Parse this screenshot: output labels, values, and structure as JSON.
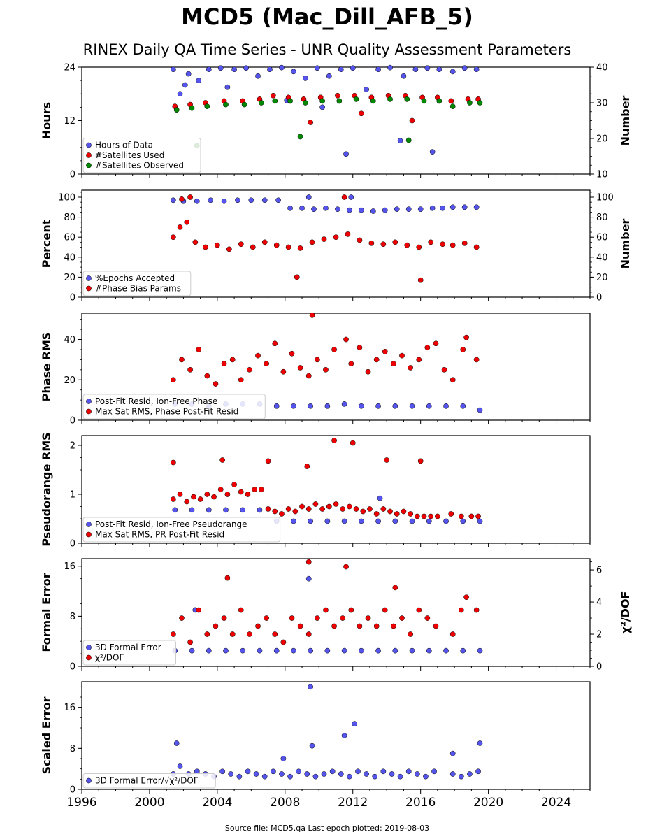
{
  "title": "MCD5 (Mac_Dill_AFB_5)",
  "subtitle": "RINEX Daily QA Time Series - UNR Quality Assessment Parameters",
  "footer": "Source file: MCD5.qa Last epoch plotted: 2019-08-03",
  "colors": {
    "blue": "#5555ee",
    "red": "#ee0000",
    "green": "#008800"
  },
  "chart_data": [
    {
      "type": "scatter",
      "ylabel": "Hours",
      "y2label": "Number",
      "ylim": [
        0,
        24
      ],
      "yticks": [
        0,
        12,
        24
      ],
      "y2lim": [
        10,
        40
      ],
      "y2ticks": [
        10,
        20,
        30,
        40
      ],
      "xlim": [
        1996,
        2026
      ],
      "legend": "bottom-left",
      "series": [
        {
          "name": "Hours of Data",
          "axis": "left",
          "color": "#5555ee",
          "x": [
            2001.4,
            2001.8,
            2002.3,
            2002.9,
            2003.5,
            2004.2,
            2005.0,
            2005.7,
            2006.4,
            2007.1,
            2007.8,
            2008.5,
            2009.2,
            2009.9,
            2010.6,
            2011.3,
            2012.0,
            2012.8,
            2013.5,
            2014.2,
            2015.0,
            2015.7,
            2016.4,
            2017.1,
            2017.9,
            2018.6,
            2019.3,
            2002.1,
            2004.6,
            2008.1,
            2010.2,
            2011.6,
            2014.8,
            2016.7
          ],
          "y": [
            23.5,
            18.0,
            22.5,
            21.0,
            23.5,
            23.8,
            23.5,
            23.8,
            22.0,
            23.5,
            23.9,
            23.0,
            21.5,
            23.8,
            22.0,
            23.5,
            23.8,
            19.0,
            23.5,
            23.9,
            22.0,
            23.5,
            23.8,
            23.5,
            23.0,
            23.8,
            23.5,
            20.0,
            19.5,
            16.5,
            15.0,
            4.5,
            7.5,
            5.0
          ]
        },
        {
          "name": "#Satellites Used",
          "axis": "right",
          "color": "#ee0000",
          "x": [
            2001.5,
            2002.4,
            2003.3,
            2004.4,
            2005.5,
            2006.5,
            2007.3,
            2008.2,
            2009.1,
            2010.1,
            2011.1,
            2012.1,
            2013.1,
            2014.1,
            2015.1,
            2016.1,
            2017.0,
            2017.8,
            2018.8,
            2019.4,
            2009.5,
            2012.5,
            2015.5
          ],
          "y": [
            29.0,
            29.5,
            30.0,
            30.5,
            30.5,
            31.0,
            32.0,
            31.5,
            31.0,
            31.5,
            32.0,
            32.0,
            31.5,
            32.0,
            32.0,
            31.5,
            31.5,
            30.5,
            31.0,
            31.0,
            24.5,
            27.0,
            25.0
          ]
        },
        {
          "name": "#Satellites Observed",
          "axis": "right",
          "color": "#008800",
          "x": [
            2001.6,
            2002.5,
            2003.4,
            2004.5,
            2005.6,
            2006.6,
            2007.4,
            2008.3,
            2009.2,
            2010.2,
            2011.2,
            2012.2,
            2013.2,
            2014.2,
            2015.2,
            2016.2,
            2017.1,
            2017.9,
            2018.9,
            2019.5,
            2002.8,
            2008.9,
            2015.3
          ],
          "y": [
            28.0,
            28.5,
            29.0,
            29.5,
            29.5,
            30.0,
            30.5,
            30.5,
            30.0,
            30.5,
            30.5,
            31.0,
            30.5,
            31.0,
            31.0,
            30.5,
            30.5,
            29.0,
            30.0,
            30.0,
            18.0,
            20.5,
            19.5
          ]
        }
      ]
    },
    {
      "type": "scatter",
      "ylabel": "Percent",
      "y2label": "Number",
      "ylim": [
        0,
        107
      ],
      "yticks": [
        0,
        20,
        40,
        60,
        80,
        100
      ],
      "y2lim": [
        0,
        107
      ],
      "y2ticks": [
        0,
        20,
        40,
        60,
        80,
        100
      ],
      "xlim": [
        1996,
        2026
      ],
      "legend": "bottom-left",
      "series": [
        {
          "name": "%Epochs Accepted",
          "axis": "left",
          "color": "#5555ee",
          "x": [
            2001.4,
            2002.0,
            2002.8,
            2003.6,
            2004.4,
            2005.2,
            2006.0,
            2006.8,
            2007.6,
            2008.3,
            2009.0,
            2009.7,
            2010.4,
            2011.1,
            2011.8,
            2012.5,
            2013.2,
            2013.9,
            2014.6,
            2015.3,
            2016.0,
            2016.7,
            2017.3,
            2017.9,
            2018.6,
            2019.3,
            2009.4,
            2011.9
          ],
          "y": [
            97,
            96,
            96,
            97,
            96,
            97,
            97,
            97,
            97,
            89,
            89,
            88,
            89,
            88,
            87,
            87,
            86,
            87,
            88,
            88,
            88,
            89,
            89,
            90,
            90,
            90,
            100,
            100
          ]
        },
        {
          "name": "#Phase Bias Params",
          "axis": "right",
          "color": "#ee0000",
          "x": [
            2001.4,
            2001.8,
            2002.2,
            2002.7,
            2003.3,
            2004.0,
            2004.7,
            2005.4,
            2006.1,
            2006.8,
            2007.5,
            2008.2,
            2008.9,
            2009.6,
            2010.3,
            2011.0,
            2011.7,
            2012.4,
            2013.1,
            2013.8,
            2014.5,
            2015.2,
            2015.9,
            2016.6,
            2017.3,
            2017.9,
            2018.6,
            2019.3,
            2001.9,
            2002.4,
            2011.5,
            2008.7,
            2016.0
          ],
          "y": [
            60,
            70,
            75,
            55,
            50,
            52,
            48,
            53,
            50,
            55,
            52,
            50,
            49,
            55,
            58,
            60,
            63,
            57,
            54,
            53,
            55,
            52,
            50,
            55,
            53,
            52,
            54,
            50,
            98,
            100,
            100,
            20,
            17
          ]
        }
      ]
    },
    {
      "type": "scatter",
      "ylabel": "Phase RMS",
      "ylim": [
        0,
        53
      ],
      "yticks": [
        0,
        20,
        40
      ],
      "xlim": [
        1996,
        2026
      ],
      "legend": "bottom-left",
      "series": [
        {
          "name": "Post-Fit Resid, Ion-Free Phase",
          "color": "#5555ee",
          "x": [
            2001.5,
            2002.5,
            2003.5,
            2004.5,
            2005.5,
            2006.5,
            2007.5,
            2008.5,
            2009.5,
            2010.5,
            2011.5,
            2012.5,
            2013.5,
            2014.5,
            2015.5,
            2016.5,
            2017.5,
            2018.5,
            2019.5
          ],
          "y": [
            8,
            8,
            7,
            8,
            8,
            8,
            7,
            7,
            7,
            7,
            8,
            7,
            7,
            7,
            7,
            7,
            7,
            7,
            5
          ]
        },
        {
          "name": "Max Sat RMS, Phase Post-Fit Resid",
          "color": "#ee0000",
          "x": [
            2001.4,
            2001.9,
            2002.4,
            2002.9,
            2003.4,
            2003.9,
            2004.4,
            2004.9,
            2005.4,
            2005.9,
            2006.4,
            2006.9,
            2007.4,
            2007.9,
            2008.4,
            2008.9,
            2009.4,
            2009.6,
            2009.9,
            2010.4,
            2010.9,
            2011.6,
            2011.9,
            2012.4,
            2012.9,
            2013.4,
            2013.9,
            2014.4,
            2014.9,
            2015.4,
            2015.9,
            2016.4,
            2016.9,
            2017.4,
            2017.9,
            2018.5,
            2018.7,
            2019.3
          ],
          "y": [
            20,
            30,
            25,
            35,
            22,
            18,
            28,
            30,
            20,
            25,
            32,
            28,
            38,
            24,
            33,
            26,
            22,
            52,
            30,
            25,
            35,
            40,
            28,
            36,
            24,
            30,
            34,
            28,
            32,
            26,
            30,
            36,
            38,
            25,
            20,
            35,
            41,
            30
          ]
        }
      ]
    },
    {
      "type": "scatter",
      "ylabel": "Pseudorange RMS",
      "ylim": [
        0,
        2.2
      ],
      "yticks": [
        0,
        1,
        2
      ],
      "xlim": [
        1996,
        2026
      ],
      "legend": "bottom-left",
      "series": [
        {
          "name": "Post-Fit Resid, Ion-Free Pseudorange",
          "color": "#5555ee",
          "x": [
            2001.5,
            2002.5,
            2003.5,
            2004.5,
            2005.5,
            2006.5,
            2007.5,
            2008.5,
            2009.5,
            2010.5,
            2011.5,
            2012.5,
            2013.5,
            2014.5,
            2015.5,
            2016.5,
            2017.5,
            2018.5,
            2019.5,
            2013.6
          ],
          "y": [
            0.68,
            0.68,
            0.68,
            0.68,
            0.68,
            0.68,
            0.45,
            0.45,
            0.45,
            0.45,
            0.45,
            0.45,
            0.45,
            0.45,
            0.45,
            0.45,
            0.45,
            0.45,
            0.45,
            0.92
          ]
        },
        {
          "name": "Max Sat RMS, PR Post-Fit Resid",
          "color": "#ee0000",
          "x": [
            2001.4,
            2001.8,
            2002.2,
            2002.6,
            2003.0,
            2003.4,
            2003.8,
            2004.2,
            2004.6,
            2005.0,
            2005.4,
            2005.8,
            2006.2,
            2006.6,
            2007.0,
            2007.4,
            2007.8,
            2008.2,
            2008.6,
            2009.0,
            2009.4,
            2009.8,
            2010.2,
            2010.6,
            2011.0,
            2011.4,
            2011.8,
            2012.2,
            2012.6,
            2013.0,
            2013.4,
            2013.8,
            2014.2,
            2014.6,
            2015.0,
            2015.4,
            2015.8,
            2016.2,
            2016.6,
            2017.0,
            2017.8,
            2018.4,
            2019.0,
            2019.4,
            2001.4,
            2004.3,
            2007.0,
            2009.3,
            2010.9,
            2012.0,
            2014.0,
            2016.0
          ],
          "y": [
            0.9,
            1.0,
            0.85,
            0.95,
            0.9,
            1.0,
            0.95,
            1.1,
            1.0,
            1.2,
            1.05,
            1.0,
            1.1,
            1.1,
            0.7,
            0.65,
            0.6,
            0.7,
            0.65,
            0.75,
            0.7,
            0.8,
            0.7,
            0.75,
            0.8,
            0.7,
            0.75,
            0.7,
            0.65,
            0.7,
            0.6,
            0.7,
            0.65,
            0.6,
            0.65,
            0.6,
            0.55,
            0.55,
            0.55,
            0.55,
            0.6,
            0.55,
            0.55,
            0.55,
            1.65,
            1.7,
            1.68,
            1.57,
            2.1,
            2.05,
            1.7,
            1.68
          ]
        }
      ]
    },
    {
      "type": "scatter",
      "ylabel": "Formal Error",
      "y2label": "χ²/DOF",
      "ylim": [
        0,
        17.2
      ],
      "yticks": [
        0,
        8,
        16
      ],
      "y2lim": [
        0,
        6.7
      ],
      "y2ticks": [
        0,
        2,
        4,
        6
      ],
      "xlim": [
        1996,
        2026
      ],
      "legend": "bottom-left",
      "series": [
        {
          "name": "3D Formal Error",
          "axis": "left",
          "color": "#5555ee",
          "x": [
            2001.5,
            2002.5,
            2003.5,
            2004.5,
            2005.5,
            2006.5,
            2007.5,
            2008.5,
            2009.5,
            2010.5,
            2011.5,
            2012.5,
            2013.5,
            2014.5,
            2015.5,
            2016.5,
            2017.5,
            2018.5,
            2019.5,
            2002.7,
            2009.4
          ],
          "y": [
            2.5,
            2.5,
            2.5,
            2.5,
            2.5,
            2.5,
            2.5,
            2.5,
            2.5,
            2.5,
            2.5,
            2.5,
            2.5,
            2.5,
            2.5,
            2.5,
            2.5,
            2.5,
            2.5,
            9.0,
            14.0
          ]
        },
        {
          "name": "χ²/DOF",
          "axis": "right",
          "color": "#ee0000",
          "x": [
            2001.4,
            2001.9,
            2002.4,
            2002.9,
            2003.4,
            2003.9,
            2004.4,
            2004.9,
            2005.4,
            2005.9,
            2006.4,
            2006.9,
            2007.4,
            2007.9,
            2008.4,
            2008.9,
            2009.4,
            2009.9,
            2010.4,
            2010.9,
            2011.4,
            2011.9,
            2012.4,
            2012.9,
            2013.4,
            2013.9,
            2014.4,
            2014.9,
            2015.4,
            2015.9,
            2016.4,
            2016.9,
            2017.9,
            2018.4,
            2018.7,
            2019.3,
            2009.4,
            2011.6,
            2014.5,
            2004.6
          ],
          "y": [
            2.0,
            3.0,
            1.5,
            3.5,
            2.0,
            2.5,
            3.0,
            2.0,
            3.5,
            2.0,
            2.5,
            3.0,
            2.0,
            1.5,
            3.0,
            2.5,
            2.0,
            3.0,
            3.5,
            2.5,
            3.0,
            3.5,
            2.5,
            3.0,
            2.5,
            3.5,
            2.5,
            3.0,
            2.0,
            3.5,
            3.0,
            2.5,
            2.0,
            3.5,
            4.3,
            3.5,
            6.5,
            6.2,
            4.9,
            5.5
          ]
        }
      ]
    },
    {
      "type": "scatter",
      "ylabel": "Scaled Error",
      "ylim": [
        0,
        21
      ],
      "yticks": [
        0,
        8,
        16
      ],
      "xlim": [
        1996,
        2026
      ],
      "xticks": [
        1996,
        2000,
        2004,
        2008,
        2012,
        2016,
        2020,
        2024
      ],
      "legend": "bottom-left",
      "series": [
        {
          "name": "3D Formal Error/√χ²/DOF",
          "color": "#5555ee",
          "x": [
            2001.4,
            2001.8,
            2002.3,
            2002.8,
            2003.3,
            2003.8,
            2004.3,
            2004.8,
            2005.3,
            2005.8,
            2006.3,
            2006.8,
            2007.3,
            2007.8,
            2008.3,
            2008.8,
            2009.3,
            2009.8,
            2010.3,
            2010.8,
            2011.3,
            2011.8,
            2012.3,
            2012.8,
            2013.3,
            2013.8,
            2014.3,
            2014.8,
            2015.3,
            2015.8,
            2016.3,
            2016.8,
            2017.9,
            2018.4,
            2018.9,
            2019.4,
            2001.6,
            2009.5,
            2009.6,
            2011.5,
            2012.1,
            2019.5,
            2017.9,
            2007.9
          ],
          "y": [
            3.0,
            4.5,
            3.0,
            3.5,
            3.0,
            2.5,
            3.5,
            3.0,
            2.5,
            3.5,
            3.0,
            2.5,
            3.5,
            3.0,
            2.5,
            3.5,
            3.0,
            2.5,
            3.0,
            3.5,
            3.0,
            2.5,
            3.5,
            3.0,
            2.5,
            3.5,
            3.0,
            2.5,
            3.5,
            3.0,
            2.5,
            3.5,
            3.0,
            2.5,
            3.0,
            3.5,
            9.0,
            20.0,
            8.5,
            10.5,
            12.8,
            9.0,
            7.0,
            6.0
          ]
        }
      ]
    }
  ]
}
